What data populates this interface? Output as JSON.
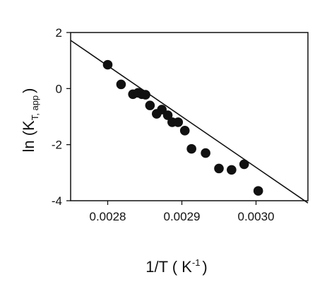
{
  "chart_data": {
    "type": "scatter",
    "xlabel_main": "1/T ( K",
    "xlabel_sup": "-1",
    "xlabel_end": ")",
    "ylabel_main": "ln (K",
    "ylabel_sub": "T, app",
    "ylabel_end": ")",
    "xlim": [
      0.00275,
      0.00307
    ],
    "ylim": [
      -4,
      2
    ],
    "x_ticks": [
      0.0028,
      0.0029,
      0.003
    ],
    "x_tick_labels": [
      "0.0028",
      "0.0029",
      "0.0030"
    ],
    "y_ticks": [
      -4,
      -2,
      0,
      2
    ],
    "y_tick_labels": [
      "-4",
      "-2",
      "0",
      "2"
    ],
    "grid": false,
    "series": [
      {
        "points": [
          {
            "x": 0.0028,
            "y": 0.85
          },
          {
            "x": 0.002818,
            "y": 0.15
          },
          {
            "x": 0.002834,
            "y": -0.2
          },
          {
            "x": 0.002841,
            "y": -0.15
          },
          {
            "x": 0.002846,
            "y": -0.2
          },
          {
            "x": 0.002851,
            "y": -0.22
          },
          {
            "x": 0.002857,
            "y": -0.6
          },
          {
            "x": 0.002866,
            "y": -0.9
          },
          {
            "x": 0.002873,
            "y": -0.75
          },
          {
            "x": 0.002881,
            "y": -0.95
          },
          {
            "x": 0.002887,
            "y": -1.2
          },
          {
            "x": 0.002895,
            "y": -1.2
          },
          {
            "x": 0.002904,
            "y": -1.5
          },
          {
            "x": 0.002913,
            "y": -2.15
          },
          {
            "x": 0.002932,
            "y": -2.3
          },
          {
            "x": 0.00295,
            "y": -2.85
          },
          {
            "x": 0.002967,
            "y": -2.9
          },
          {
            "x": 0.002984,
            "y": -2.7
          },
          {
            "x": 0.003003,
            "y": -3.65
          }
        ]
      }
    ],
    "fit_line": {
      "x": [
        0.00275,
        0.00307
      ],
      "y": [
        1.72,
        -4.08
      ]
    }
  }
}
